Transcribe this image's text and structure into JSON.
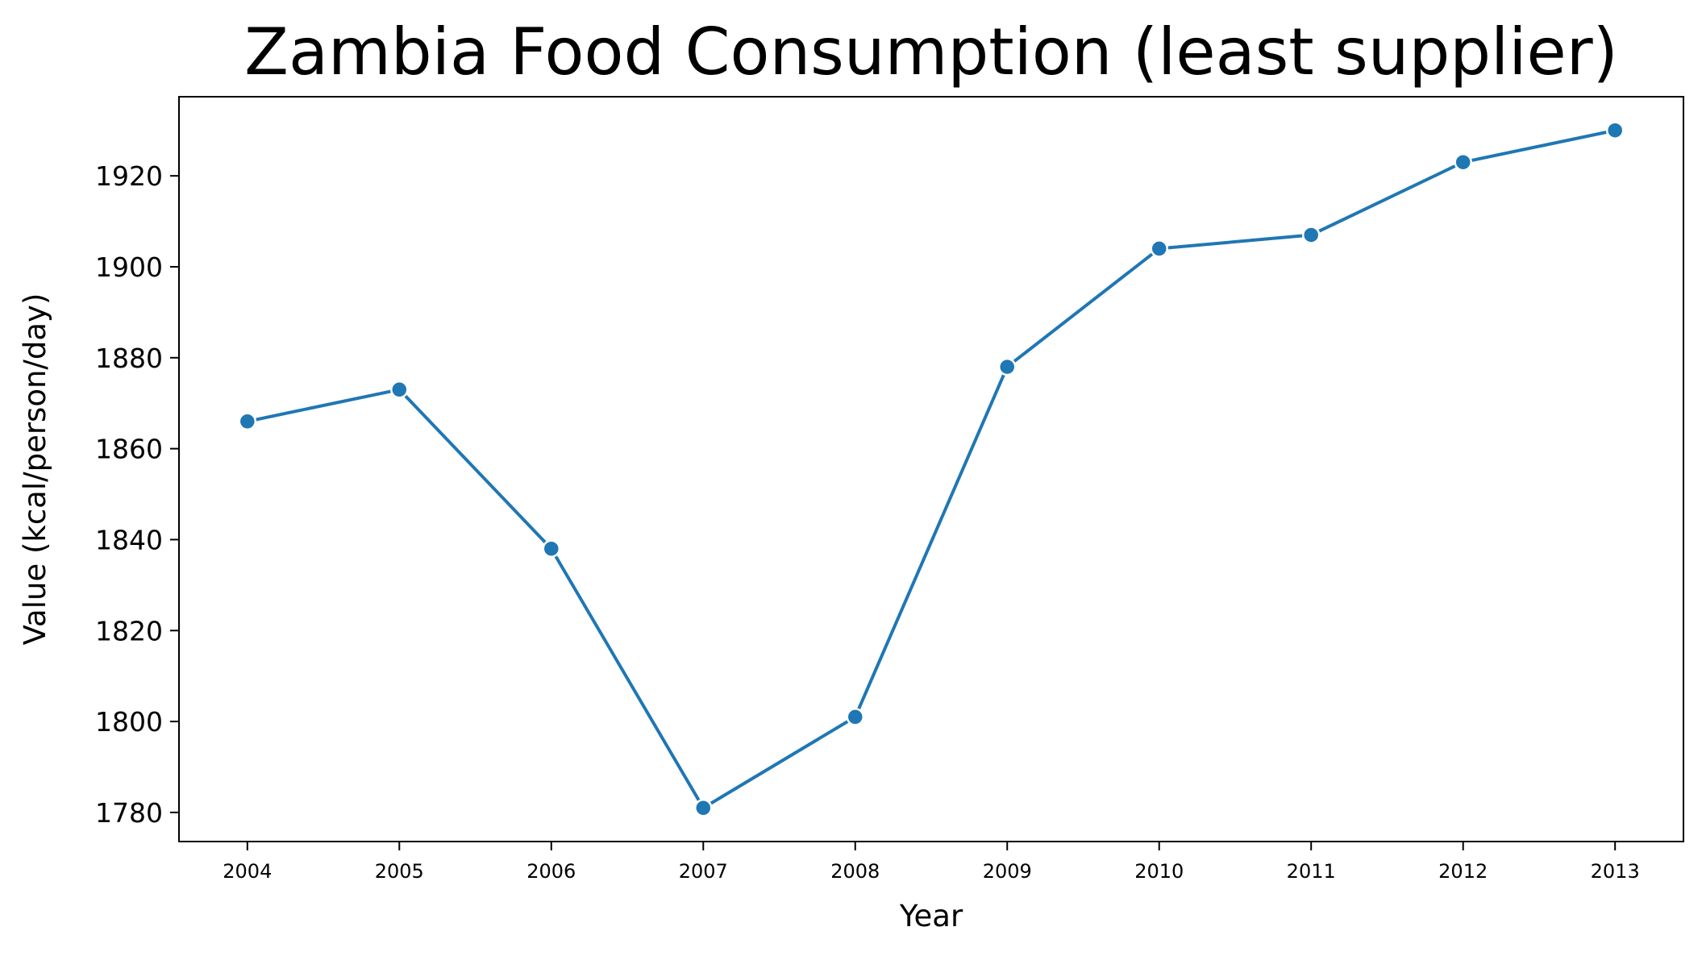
{
  "chart_data": {
    "type": "line",
    "title": "Zambia Food Consumption (least supplier)",
    "xlabel": "Year",
    "ylabel": "Value (kcal/person/day)",
    "x": [
      2004,
      2005,
      2006,
      2007,
      2008,
      2009,
      2010,
      2011,
      2012,
      2013
    ],
    "x_tick_labels": [
      "2004",
      "2005",
      "2006",
      "2007",
      "2008",
      "2009",
      "2010",
      "2011",
      "2012",
      "2013"
    ],
    "y": [
      1866,
      1873,
      1838,
      1781,
      1801,
      1878,
      1904,
      1907,
      1923,
      1930
    ],
    "y_ticks": [
      1780,
      1800,
      1820,
      1840,
      1860,
      1880,
      1900,
      1920
    ],
    "y_tick_labels": [
      "1780",
      "1800",
      "1820",
      "1840",
      "1860",
      "1880",
      "1900",
      "1920"
    ],
    "ylim": [
      1773.6,
      1937.4
    ],
    "xlim": [
      2003.55,
      2013.45
    ],
    "grid": false,
    "legend": "none",
    "line_color": "#1f77b4",
    "marker": "circle"
  }
}
